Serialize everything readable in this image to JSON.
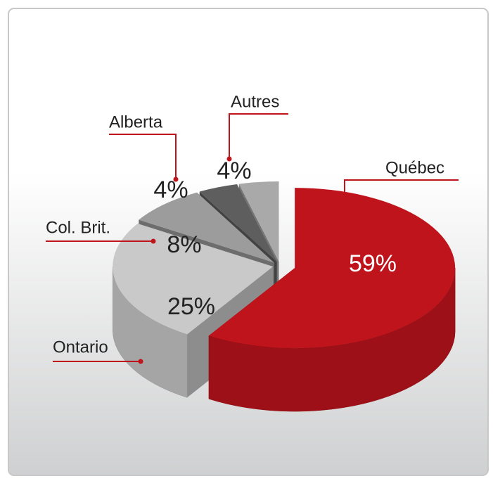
{
  "chart_data": {
    "type": "pie",
    "categories": [
      "Québec",
      "Ontario",
      "Col. Brit.",
      "Alberta",
      "Autres"
    ],
    "values": [
      59,
      25,
      8,
      4,
      4
    ],
    "value_labels": [
      "59%",
      "25%",
      "8%",
      "4%",
      "4%"
    ],
    "colors": [
      "#c0141c",
      "#c9c9c9",
      "#9c9c9c",
      "#5e5e5e",
      "#a9a9a9"
    ]
  }
}
